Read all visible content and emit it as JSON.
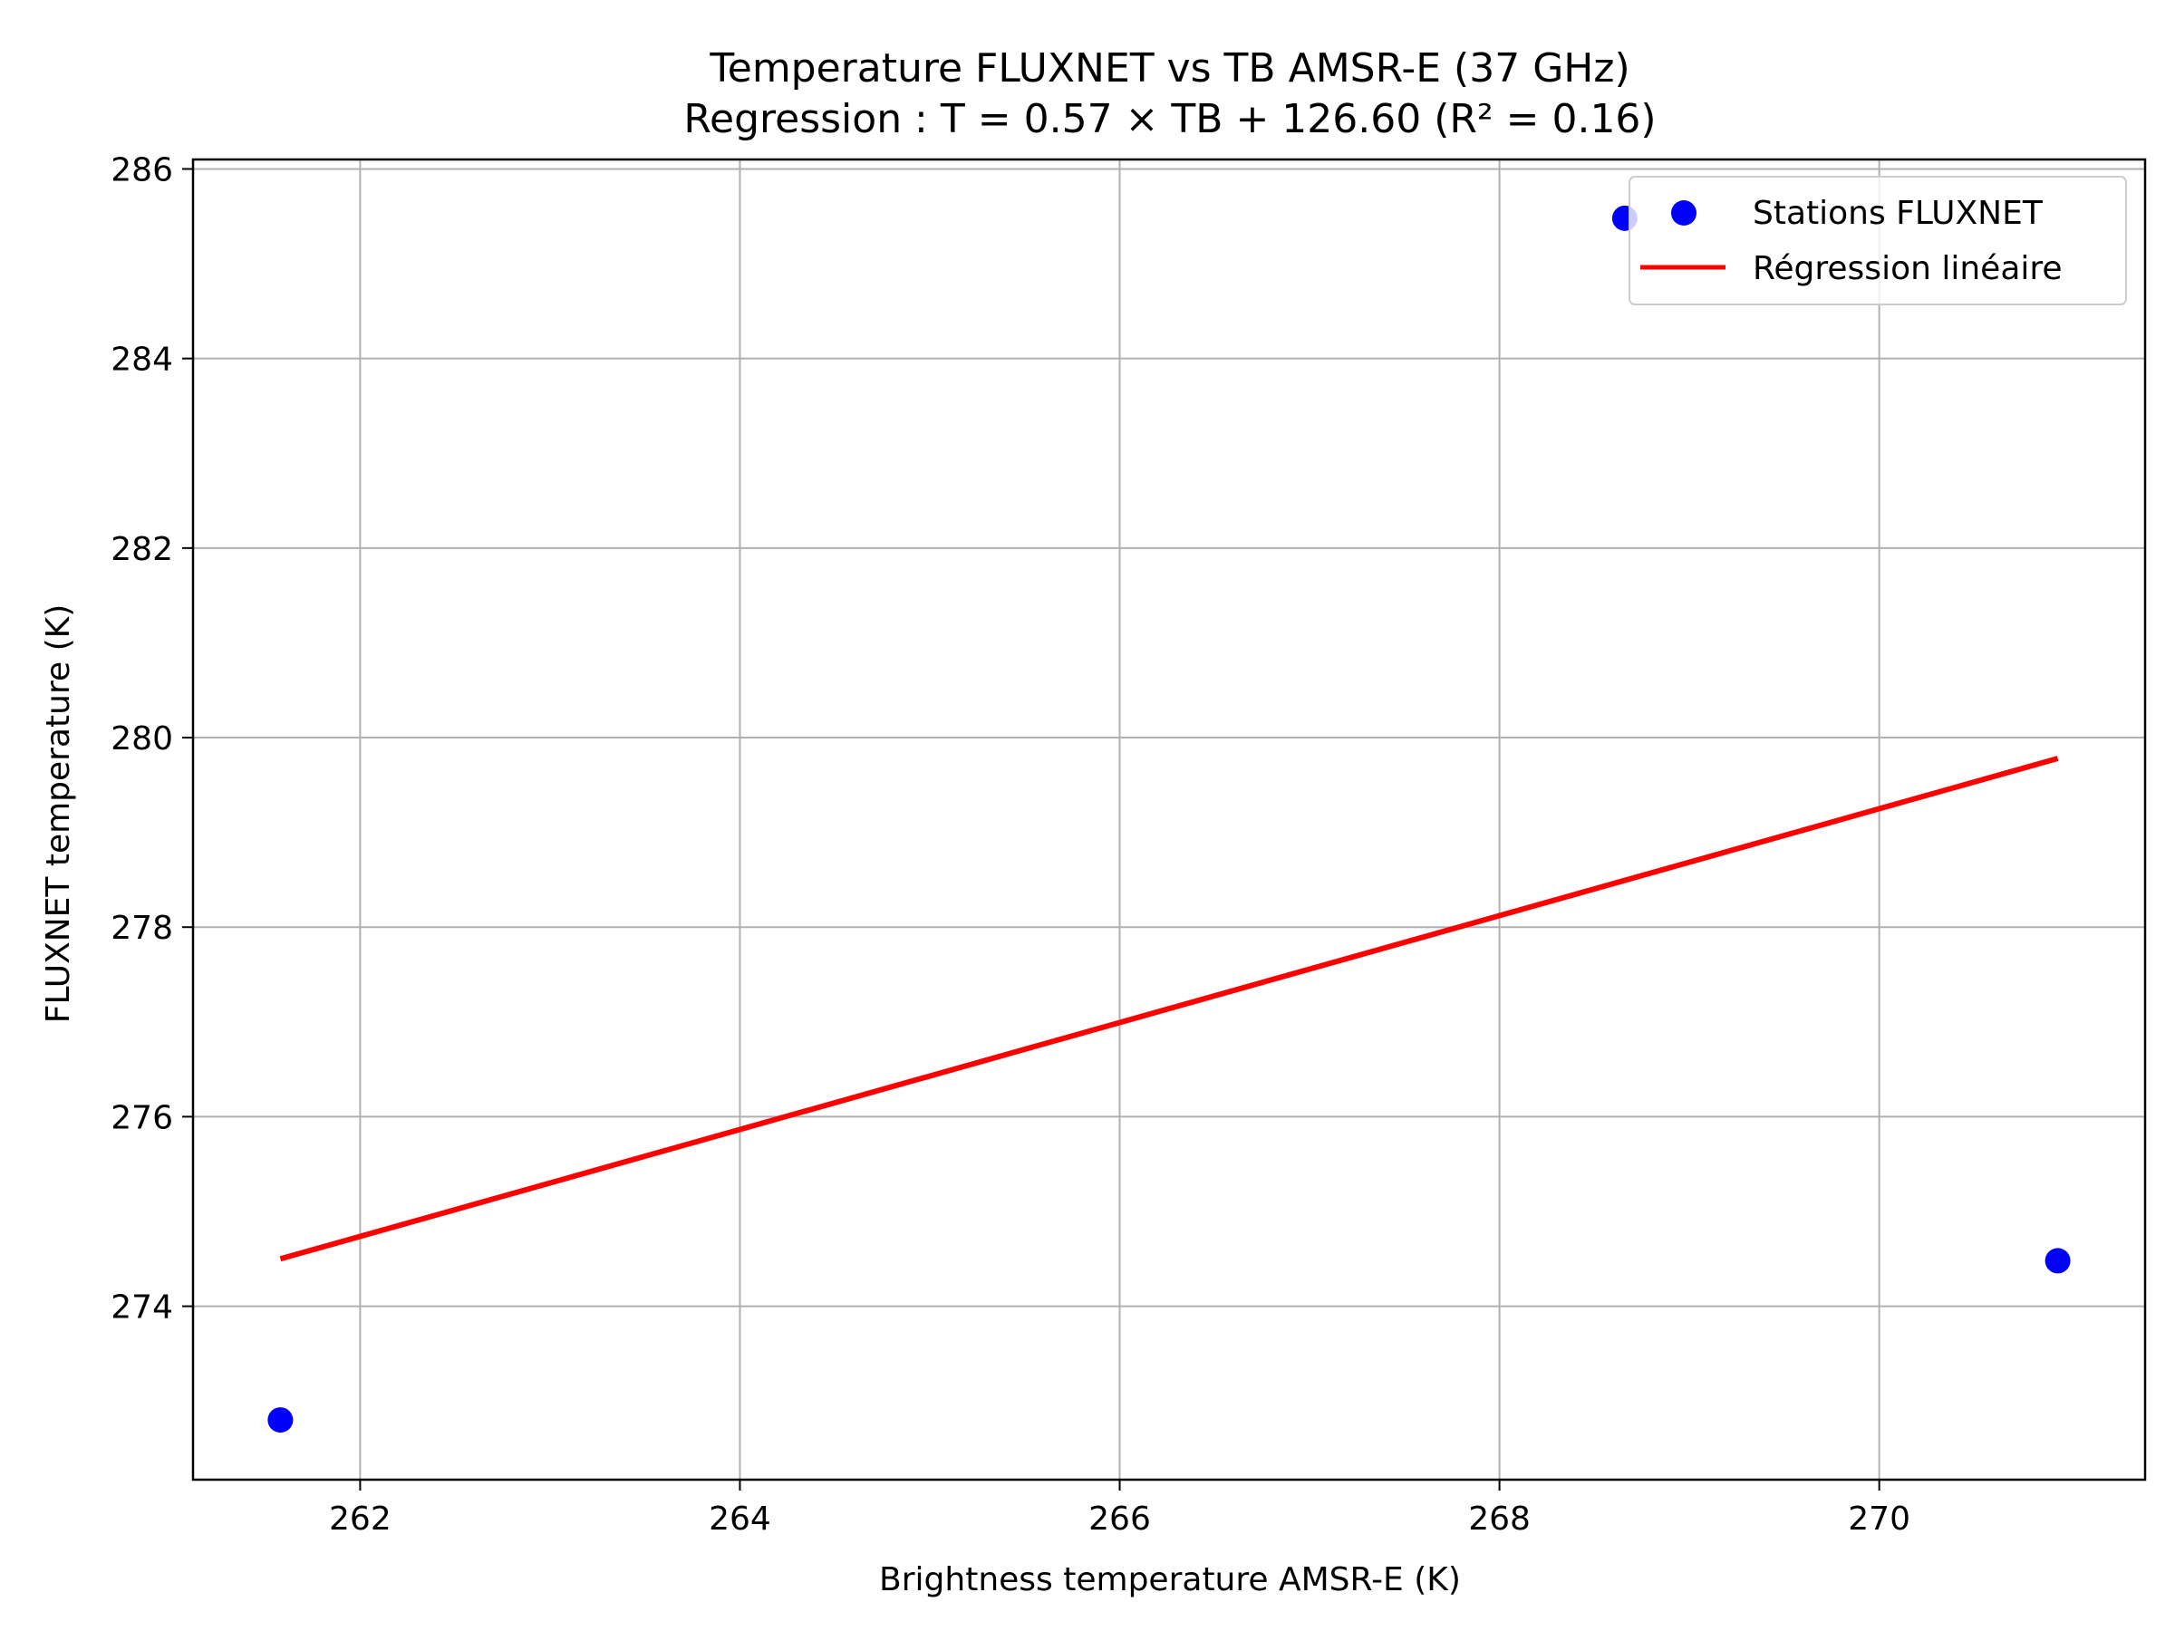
{
  "chart_data": {
    "type": "scatter",
    "title": "Temperature FLUXNET vs TB AMSR-E (37 GHz)",
    "subtitle": "Regression : T = 0.57 × TB + 126.60 (R² = 0.16)",
    "xlabel": "Brightness temperature AMSR-E (K)",
    "ylabel": "FLUXNET temperature (K)",
    "xlim": [
      261.12,
      271.4
    ],
    "ylim": [
      272.17,
      286.1
    ],
    "xticks": [
      262,
      264,
      266,
      268,
      270
    ],
    "yticks": [
      274,
      276,
      278,
      280,
      282,
      284,
      286
    ],
    "grid": true,
    "legend_position": "top-right",
    "series": [
      {
        "name": "Stations FLUXNET",
        "type": "scatter",
        "color": "#0000ff",
        "points": [
          [
            261.58,
            272.8
          ],
          [
            268.66,
            285.48
          ],
          [
            270.94,
            274.48
          ]
        ]
      },
      {
        "name": "Régression linéaire",
        "type": "line",
        "color": "#ff0000",
        "points": [
          [
            261.58,
            274.5
          ],
          [
            270.94,
            279.78
          ]
        ]
      }
    ]
  }
}
